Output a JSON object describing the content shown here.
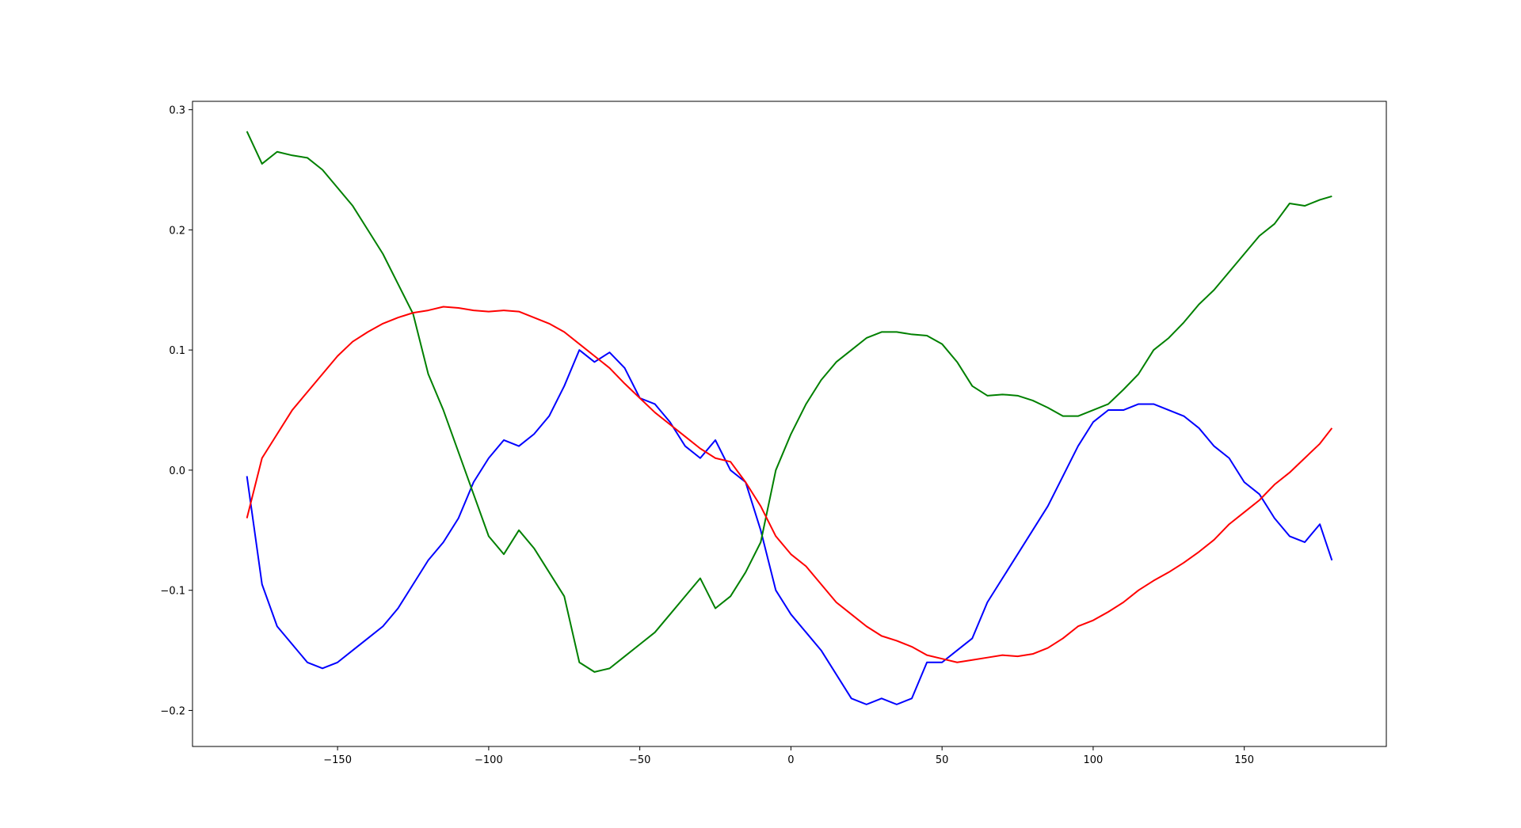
{
  "chart_data": {
    "type": "line",
    "x": [
      -180,
      -175,
      -170,
      -165,
      -160,
      -155,
      -150,
      -145,
      -140,
      -135,
      -130,
      -125,
      -120,
      -115,
      -110,
      -105,
      -100,
      -95,
      -90,
      -85,
      -80,
      -75,
      -70,
      -65,
      -60,
      -55,
      -50,
      -45,
      -40,
      -35,
      -30,
      -25,
      -20,
      -15,
      -10,
      -5,
      0,
      5,
      10,
      15,
      20,
      25,
      30,
      35,
      40,
      45,
      50,
      55,
      60,
      65,
      70,
      75,
      80,
      85,
      90,
      95,
      100,
      105,
      110,
      115,
      120,
      125,
      130,
      135,
      140,
      145,
      150,
      155,
      160,
      165,
      170,
      175,
      179
    ],
    "series": [
      {
        "color": "#0000ff",
        "values": [
          -0.005,
          -0.095,
          -0.13,
          -0.145,
          -0.16,
          -0.165,
          -0.16,
          -0.15,
          -0.14,
          -0.13,
          -0.115,
          -0.095,
          -0.075,
          -0.06,
          -0.04,
          -0.01,
          0.01,
          0.025,
          0.02,
          0.03,
          0.045,
          0.07,
          0.1,
          0.09,
          0.098,
          0.085,
          0.06,
          0.055,
          0.04,
          0.02,
          0.01,
          0.025,
          0.0,
          -0.01,
          -0.05,
          -0.1,
          -0.12,
          -0.135,
          -0.15,
          -0.17,
          -0.19,
          -0.195,
          -0.19,
          -0.195,
          -0.19,
          -0.16,
          -0.16,
          -0.15,
          -0.14,
          -0.11,
          -0.09,
          -0.07,
          -0.05,
          -0.03,
          -0.005,
          0.02,
          0.04,
          0.05,
          0.05,
          0.055,
          0.055,
          0.05,
          0.045,
          0.035,
          0.02,
          0.01,
          -0.01,
          -0.02,
          -0.04,
          -0.055,
          -0.06,
          -0.045,
          -0.075
        ]
      },
      {
        "color": "#008000",
        "values": [
          0.282,
          0.255,
          0.265,
          0.262,
          0.26,
          0.25,
          0.235,
          0.22,
          0.2,
          0.18,
          0.155,
          0.13,
          0.08,
          0.05,
          0.015,
          -0.02,
          -0.055,
          -0.07,
          -0.05,
          -0.065,
          -0.085,
          -0.105,
          -0.16,
          -0.168,
          -0.165,
          -0.155,
          -0.145,
          -0.135,
          -0.12,
          -0.105,
          -0.09,
          -0.115,
          -0.105,
          -0.085,
          -0.06,
          0.0,
          0.03,
          0.055,
          0.075,
          0.09,
          0.1,
          0.11,
          0.115,
          0.115,
          0.113,
          0.112,
          0.105,
          0.09,
          0.07,
          0.062,
          0.063,
          0.062,
          0.058,
          0.052,
          0.045,
          0.045,
          0.05,
          0.055,
          0.067,
          0.08,
          0.1,
          0.11,
          0.123,
          0.138,
          0.15,
          0.165,
          0.18,
          0.195,
          0.205,
          0.222,
          0.22,
          0.225,
          0.228
        ]
      },
      {
        "color": "#ff0000",
        "values": [
          -0.04,
          0.01,
          0.03,
          0.05,
          0.065,
          0.08,
          0.095,
          0.107,
          0.115,
          0.122,
          0.127,
          0.131,
          0.133,
          0.136,
          0.135,
          0.133,
          0.132,
          0.133,
          0.132,
          0.127,
          0.122,
          0.115,
          0.105,
          0.095,
          0.085,
          0.072,
          0.06,
          0.048,
          0.038,
          0.028,
          0.018,
          0.01,
          0.007,
          -0.01,
          -0.03,
          -0.055,
          -0.07,
          -0.08,
          -0.095,
          -0.11,
          -0.12,
          -0.13,
          -0.138,
          -0.142,
          -0.147,
          -0.154,
          -0.157,
          -0.16,
          -0.158,
          -0.156,
          -0.154,
          -0.155,
          -0.153,
          -0.148,
          -0.14,
          -0.13,
          -0.125,
          -0.118,
          -0.11,
          -0.1,
          -0.092,
          -0.085,
          -0.077,
          -0.068,
          -0.058,
          -0.045,
          -0.035,
          -0.025,
          -0.012,
          -0.002,
          0.01,
          0.022,
          0.035
        ]
      }
    ],
    "xlim": [
      -198,
      197
    ],
    "ylim": [
      -0.23,
      0.307
    ],
    "xticks": [
      {
        "value": -150,
        "label": "−150"
      },
      {
        "value": -100,
        "label": "−100"
      },
      {
        "value": -50,
        "label": "−50"
      },
      0,
      50,
      100,
      150
    ],
    "yticks": [
      {
        "value": -0.2,
        "label": "−0.2"
      },
      {
        "value": -0.1,
        "label": "−0.1"
      },
      {
        "value": 0,
        "label": "0.0"
      },
      0.1,
      0.2,
      0.3
    ]
  }
}
